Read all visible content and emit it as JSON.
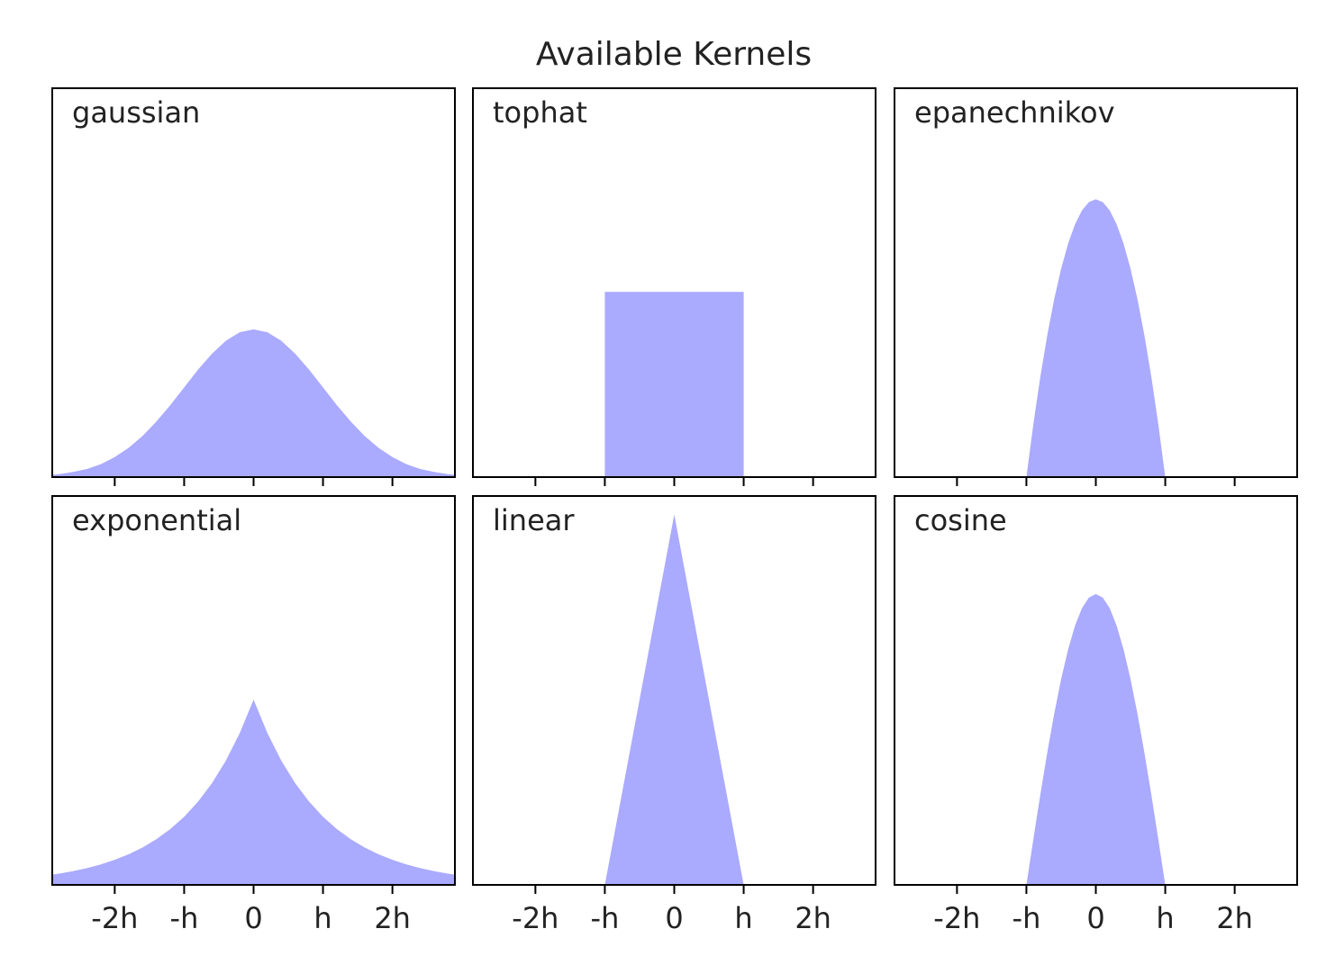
{
  "title": "Available Kernels",
  "chart_data": [
    {
      "type": "area",
      "title": "gaussian",
      "color": "#aaaaff",
      "xlim": [
        -2.9,
        2.9
      ],
      "ylim": [
        0,
        1.05
      ],
      "xticks": [
        -2,
        -1,
        0,
        1,
        2
      ],
      "x": [
        -2.9,
        -2.8,
        -2.6,
        -2.4,
        -2.2,
        -2.0,
        -1.8,
        -1.6,
        -1.4,
        -1.2,
        -1.0,
        -0.8,
        -0.6,
        -0.4,
        -0.2,
        0,
        0.2,
        0.4,
        0.6,
        0.8,
        1.0,
        1.2,
        1.4,
        1.6,
        1.8,
        2.0,
        2.2,
        2.4,
        2.6,
        2.8,
        2.9
      ],
      "values": [
        0.006,
        0.008,
        0.014,
        0.022,
        0.035,
        0.054,
        0.079,
        0.111,
        0.15,
        0.194,
        0.242,
        0.29,
        0.333,
        0.368,
        0.391,
        0.399,
        0.391,
        0.368,
        0.333,
        0.29,
        0.242,
        0.194,
        0.15,
        0.111,
        0.079,
        0.054,
        0.035,
        0.022,
        0.014,
        0.008,
        0.006
      ]
    },
    {
      "type": "area",
      "title": "tophat",
      "color": "#aaaaff",
      "xlim": [
        -2.9,
        2.9
      ],
      "ylim": [
        0,
        1.05
      ],
      "xticks": [
        -2,
        -1,
        0,
        1,
        2
      ],
      "x": [
        -2.9,
        -1,
        -1,
        1,
        1,
        2.9
      ],
      "values": [
        0,
        0,
        0.5,
        0.5,
        0,
        0
      ]
    },
    {
      "type": "area",
      "title": "epanechnikov",
      "color": "#aaaaff",
      "xlim": [
        -2.9,
        2.9
      ],
      "ylim": [
        0,
        1.05
      ],
      "xticks": [
        -2,
        -1,
        0,
        1,
        2
      ],
      "x": [
        -2.9,
        -1,
        -0.9,
        -0.8,
        -0.7,
        -0.6,
        -0.5,
        -0.4,
        -0.3,
        -0.2,
        -0.1,
        0,
        0.1,
        0.2,
        0.3,
        0.4,
        0.5,
        0.6,
        0.7,
        0.8,
        0.9,
        1,
        2.9
      ],
      "values": [
        0,
        0,
        0.1425,
        0.27,
        0.3825,
        0.48,
        0.5625,
        0.63,
        0.6825,
        0.72,
        0.7425,
        0.75,
        0.7425,
        0.72,
        0.6825,
        0.63,
        0.5625,
        0.48,
        0.3825,
        0.27,
        0.1425,
        0,
        0
      ]
    },
    {
      "type": "area",
      "title": "exponential",
      "color": "#aaaaff",
      "xlim": [
        -2.9,
        2.9
      ],
      "ylim": [
        0,
        1.05
      ],
      "xticks": [
        {
          "value": -2,
          "label": "-2h"
        },
        {
          "value": -1,
          "label": "-h"
        },
        0,
        {
          "value": 1,
          "label": "h"
        },
        {
          "value": 2,
          "label": "2h"
        }
      ],
      "x": [
        -2.9,
        -2.8,
        -2.6,
        -2.4,
        -2.2,
        -2.0,
        -1.8,
        -1.6,
        -1.4,
        -1.2,
        -1.0,
        -0.8,
        -0.6,
        -0.4,
        -0.2,
        0,
        0.2,
        0.4,
        0.6,
        0.8,
        1.0,
        1.2,
        1.4,
        1.6,
        1.8,
        2.0,
        2.2,
        2.4,
        2.6,
        2.8,
        2.9
      ],
      "values": [
        0.0275,
        0.0304,
        0.0371,
        0.0454,
        0.0554,
        0.0677,
        0.0826,
        0.1009,
        0.1233,
        0.1506,
        0.1839,
        0.2247,
        0.2744,
        0.3352,
        0.4094,
        0.5,
        0.4094,
        0.3352,
        0.2744,
        0.2247,
        0.1839,
        0.1506,
        0.1233,
        0.1009,
        0.0826,
        0.0677,
        0.0554,
        0.0454,
        0.0371,
        0.0304,
        0.0275
      ]
    },
    {
      "type": "area",
      "title": "linear",
      "color": "#aaaaff",
      "xlim": [
        -2.9,
        2.9
      ],
      "ylim": [
        0,
        1.05
      ],
      "xticks": [
        {
          "value": -2,
          "label": "-2h"
        },
        {
          "value": -1,
          "label": "-h"
        },
        0,
        {
          "value": 1,
          "label": "h"
        },
        {
          "value": 2,
          "label": "2h"
        }
      ],
      "x": [
        -2.9,
        -1,
        0,
        1,
        2.9
      ],
      "values": [
        0,
        0,
        1,
        0,
        0
      ]
    },
    {
      "type": "area",
      "title": "cosine",
      "color": "#aaaaff",
      "xlim": [
        -2.9,
        2.9
      ],
      "ylim": [
        0,
        1.05
      ],
      "xticks": [
        {
          "value": -2,
          "label": "-2h"
        },
        {
          "value": -1,
          "label": "-h"
        },
        0,
        {
          "value": 1,
          "label": "h"
        },
        {
          "value": 2,
          "label": "2h"
        }
      ],
      "x": [
        -2.9,
        -1,
        -0.9,
        -0.8,
        -0.7,
        -0.6,
        -0.5,
        -0.4,
        -0.3,
        -0.2,
        -0.1,
        0,
        0.1,
        0.2,
        0.3,
        0.4,
        0.5,
        0.6,
        0.7,
        0.8,
        0.9,
        1,
        2.9
      ],
      "values": [
        0,
        0,
        0.1229,
        0.2427,
        0.3566,
        0.4616,
        0.5554,
        0.6354,
        0.6998,
        0.747,
        0.7757,
        0.7854,
        0.7757,
        0.747,
        0.6998,
        0.6354,
        0.5554,
        0.4616,
        0.3566,
        0.2427,
        0.1229,
        0,
        0
      ]
    }
  ]
}
